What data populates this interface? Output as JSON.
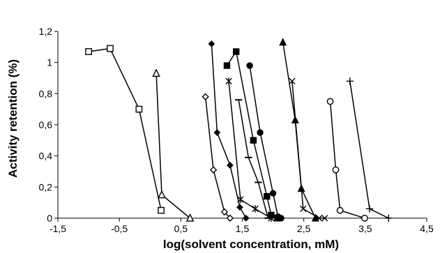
{
  "chart_data": {
    "type": "scatter",
    "xlabel": "log(solvent concentration, mM)",
    "ylabel": "Activity retention  (%)",
    "xlim": [
      -1.5,
      4.5
    ],
    "ylim": [
      0,
      1.2
    ],
    "x_ticks": [
      "-1,5",
      "-0,5",
      "0,5",
      "1,5",
      "2,5",
      "3,5",
      "4,5"
    ],
    "y_ticks": [
      "0",
      "0,2",
      "0,4",
      "0,6",
      "0,8",
      "1",
      "1,2"
    ],
    "grid": false,
    "legend": "none",
    "series": [
      {
        "marker": "open-square",
        "x": [
          -1.0,
          -0.65,
          -0.18,
          0.18
        ],
        "y": [
          1.07,
          1.09,
          0.7,
          0.05
        ]
      },
      {
        "marker": "open-triangle",
        "x": [
          0.1,
          0.19,
          0.65
        ],
        "y": [
          0.93,
          0.15,
          0.0
        ]
      },
      {
        "marker": "open-diamond",
        "x": [
          0.9,
          1.03,
          1.21,
          1.3
        ],
        "y": [
          0.78,
          0.31,
          0.04,
          0.0
        ]
      },
      {
        "marker": "filled-diamond",
        "x": [
          1.0,
          1.09,
          1.3,
          1.46,
          1.56
        ],
        "y": [
          1.12,
          0.55,
          0.34,
          0.07,
          0.0
        ]
      },
      {
        "marker": "asterisk",
        "x": [
          1.28,
          1.47,
          1.71,
          1.97
        ],
        "y": [
          0.88,
          0.12,
          0.06,
          0.0
        ]
      },
      {
        "marker": "filled-square",
        "x": [
          1.25,
          1.4,
          1.68,
          1.9,
          1.97,
          2.07
        ],
        "y": [
          0.98,
          1.07,
          0.5,
          0.14,
          0.02,
          0.0
        ]
      },
      {
        "marker": "dash",
        "x": [
          1.44,
          1.6,
          1.76,
          1.92
        ],
        "y": [
          0.76,
          0.39,
          0.23,
          0.0
        ]
      },
      {
        "marker": "filled-circle",
        "x": [
          1.62,
          1.79,
          2.0,
          2.08,
          2.13
        ],
        "y": [
          0.98,
          0.55,
          0.16,
          0.01,
          0.0
        ]
      },
      {
        "marker": "filled-triangle",
        "x": [
          2.16,
          2.36,
          2.46,
          2.69
        ],
        "y": [
          1.13,
          0.63,
          0.19,
          0.0
        ]
      },
      {
        "marker": "x-cross",
        "x": [
          2.31,
          2.49,
          2.75,
          2.84
        ],
        "y": [
          0.88,
          0.06,
          0.0,
          0.0
        ]
      },
      {
        "marker": "open-circle",
        "x": [
          2.93,
          3.02,
          3.09,
          3.49
        ],
        "y": [
          0.75,
          0.31,
          0.05,
          0.0
        ]
      },
      {
        "marker": "plus",
        "x": [
          3.25,
          3.57,
          3.88
        ],
        "y": [
          0.88,
          0.06,
          0.0
        ]
      }
    ]
  }
}
